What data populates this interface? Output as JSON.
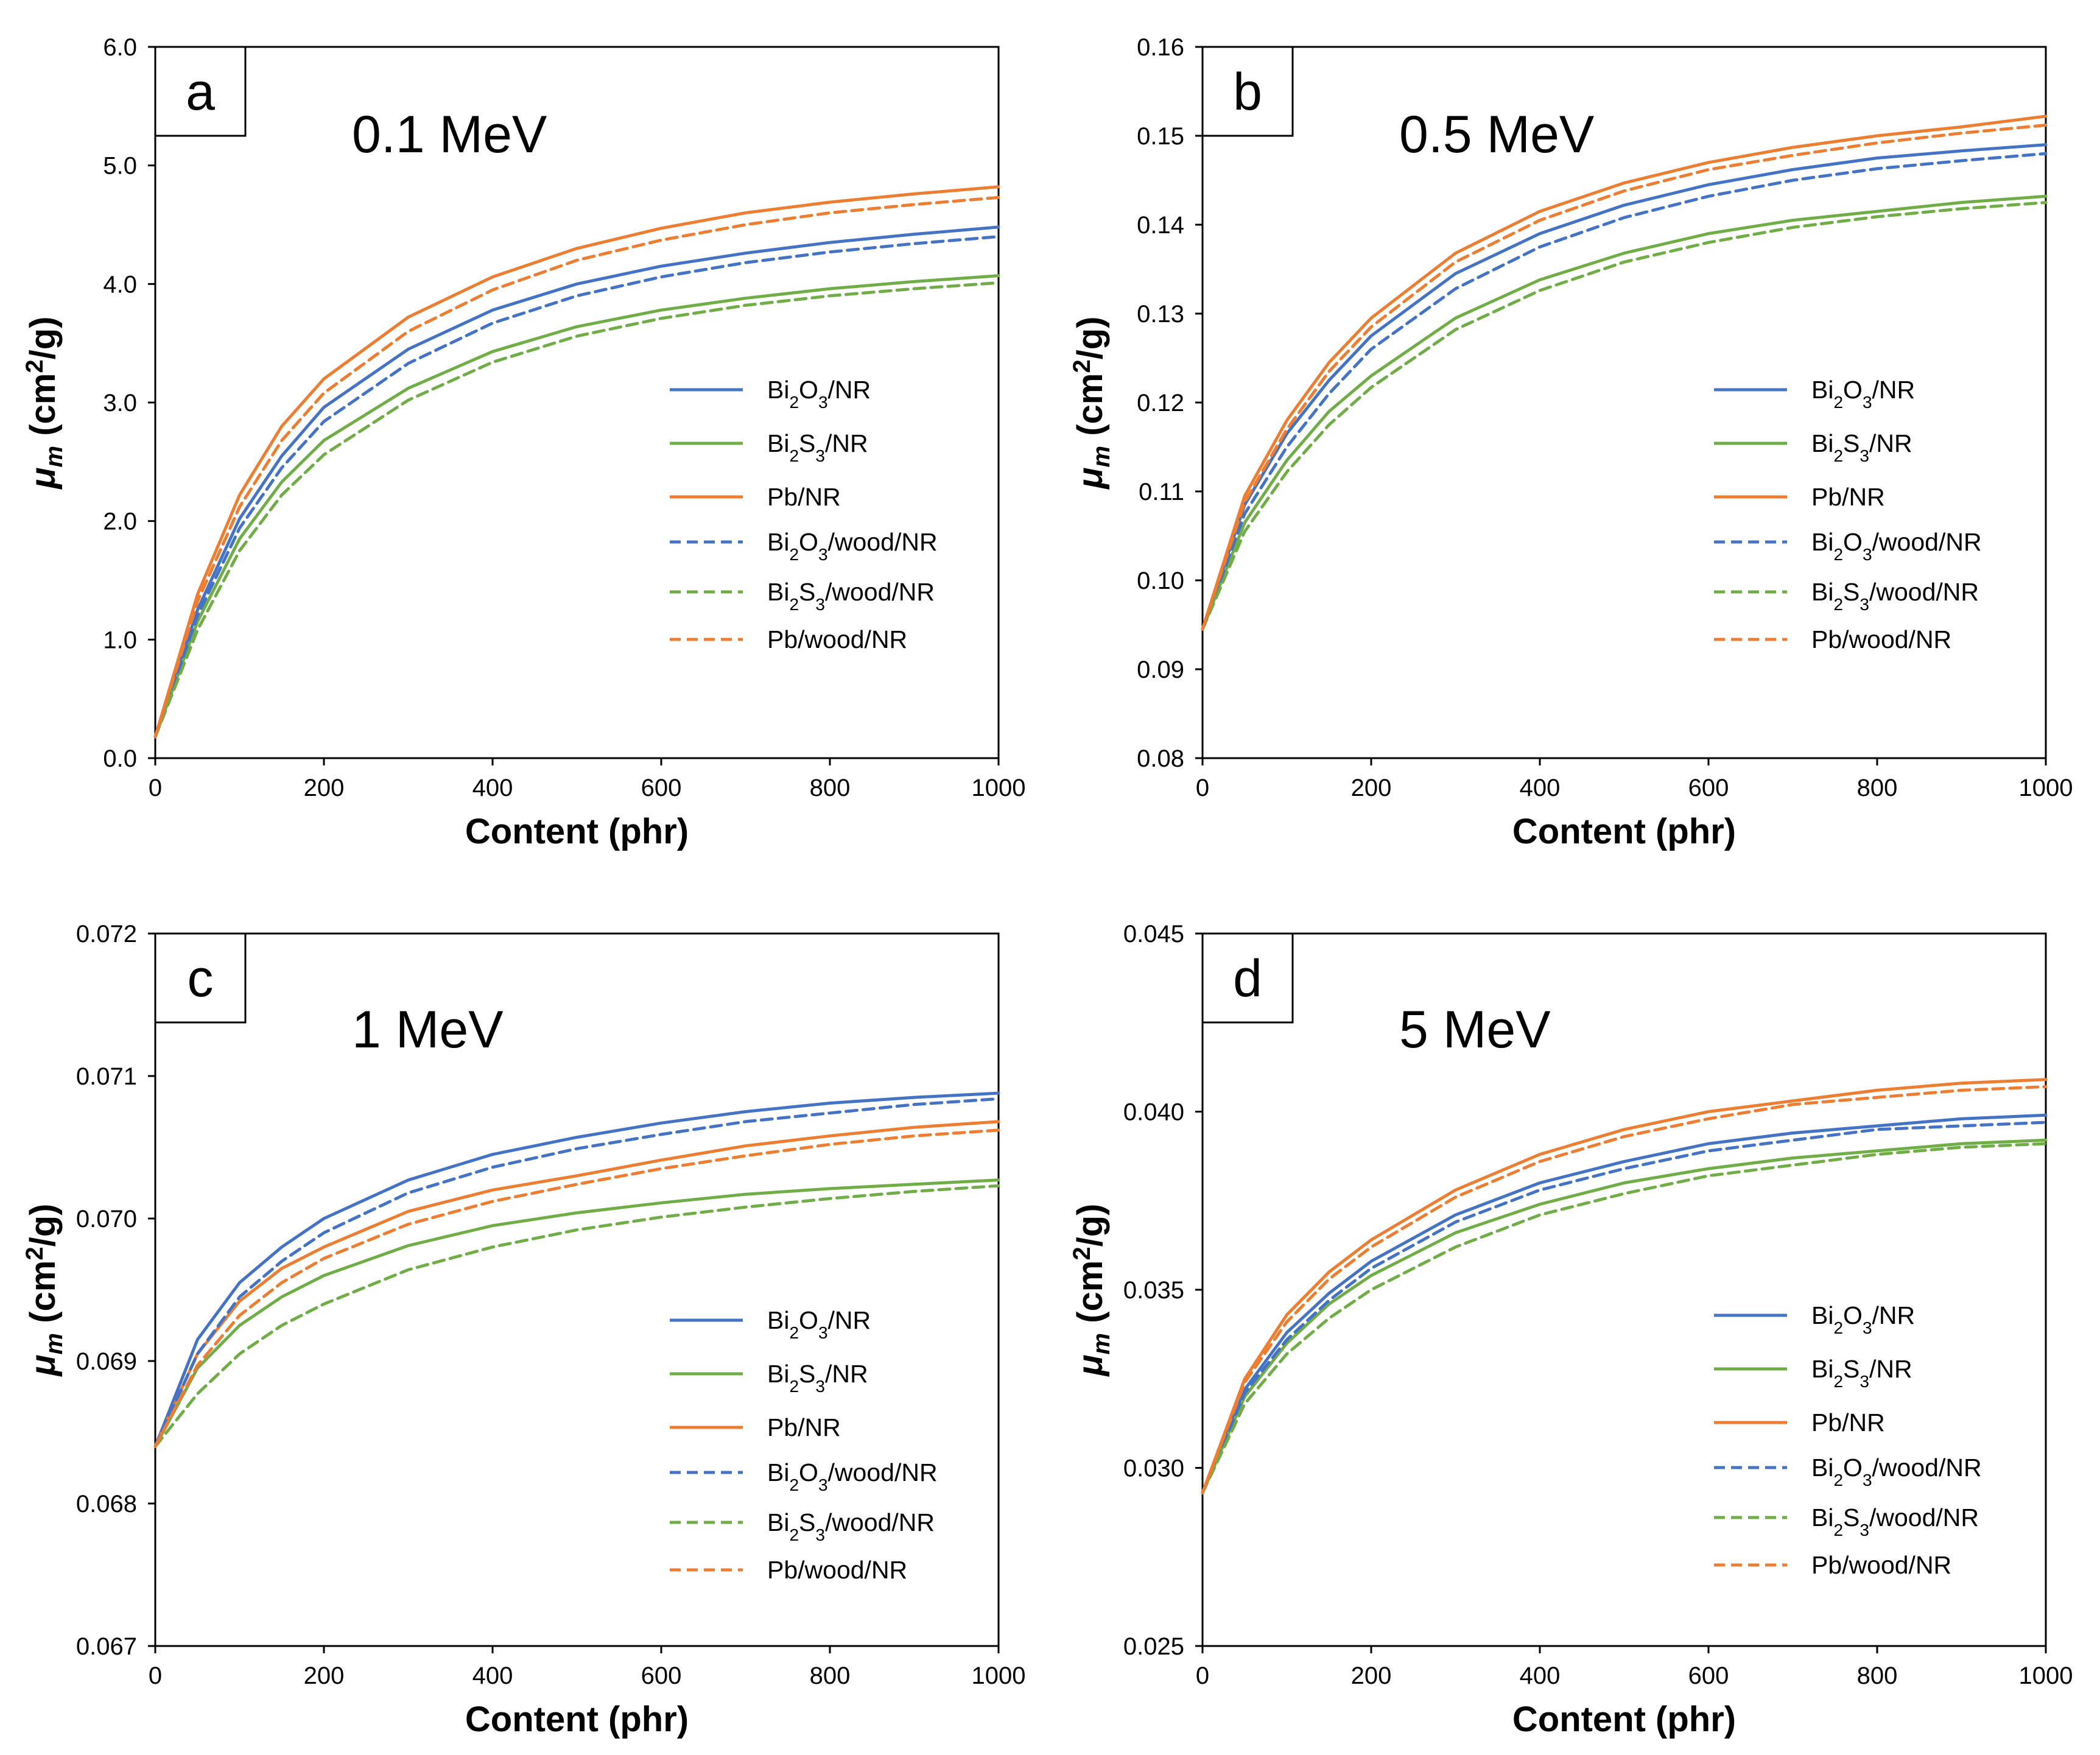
{
  "chart_data": [
    {
      "type": "line",
      "panel": "a",
      "title": "0.1 MeV",
      "xlabel": "Content (phr)",
      "ylabel": "μm (cm2/g)",
      "xlim": [
        0,
        1000
      ],
      "ylim": [
        0.0,
        6.0
      ],
      "xticks": [
        "0",
        "200",
        "400",
        "600",
        "800",
        "1000"
      ],
      "yticks": [
        "0.0",
        "1.0",
        "2.0",
        "3.0",
        "4.0",
        "5.0",
        "6.0"
      ],
      "x": [
        0,
        50,
        100,
        150,
        200,
        300,
        400,
        500,
        600,
        700,
        800,
        900,
        1000
      ],
      "series": [
        {
          "name": "Bi2O3/NR",
          "color": "#4472c4",
          "style": "solid",
          "values": [
            0.18,
            1.25,
            2.02,
            2.55,
            2.96,
            3.45,
            3.78,
            4.0,
            4.15,
            4.26,
            4.35,
            4.42,
            4.48
          ]
        },
        {
          "name": "Bi2S3/NR",
          "color": "#70ad47",
          "style": "solid",
          "values": [
            0.18,
            1.15,
            1.85,
            2.33,
            2.68,
            3.12,
            3.43,
            3.64,
            3.78,
            3.88,
            3.96,
            4.02,
            4.07
          ]
        },
        {
          "name": "Pb/NR",
          "color": "#ed7d31",
          "style": "solid",
          "values": [
            0.18,
            1.38,
            2.22,
            2.8,
            3.2,
            3.72,
            4.06,
            4.3,
            4.47,
            4.6,
            4.69,
            4.76,
            4.82
          ]
        },
        {
          "name": "Bi2O3/wood/NR",
          "color": "#4472c4",
          "style": "dashed",
          "values": [
            0.18,
            1.2,
            1.94,
            2.45,
            2.84,
            3.33,
            3.67,
            3.9,
            4.06,
            4.18,
            4.27,
            4.34,
            4.4
          ]
        },
        {
          "name": "Bi2S3/wood/NR",
          "color": "#70ad47",
          "style": "dashed",
          "values": [
            0.18,
            1.08,
            1.75,
            2.22,
            2.56,
            3.02,
            3.34,
            3.56,
            3.71,
            3.82,
            3.9,
            3.96,
            4.01
          ]
        },
        {
          "name": "Pb/wood/NR",
          "color": "#ed7d31",
          "style": "dashed",
          "values": [
            0.18,
            1.32,
            2.12,
            2.68,
            3.08,
            3.6,
            3.95,
            4.2,
            4.37,
            4.5,
            4.6,
            4.67,
            4.73
          ]
        }
      ]
    },
    {
      "type": "line",
      "panel": "b",
      "title": "0.5 MeV",
      "xlabel": "Content (phr)",
      "ylabel": "μm (cm2/g)",
      "xlim": [
        0,
        1000
      ],
      "ylim": [
        0.08,
        0.16
      ],
      "xticks": [
        "0",
        "200",
        "400",
        "600",
        "800",
        "1000"
      ],
      "yticks": [
        "0.08",
        "0.09",
        "0.10",
        "0.11",
        "0.12",
        "0.13",
        "0.14",
        "0.15",
        "0.16"
      ],
      "x": [
        0,
        50,
        100,
        150,
        200,
        300,
        400,
        500,
        600,
        700,
        800,
        900,
        1000
      ],
      "series": [
        {
          "name": "Bi2O3/NR",
          "color": "#4472c4",
          "style": "solid",
          "values": [
            0.0945,
            0.1085,
            0.1165,
            0.1225,
            0.1275,
            0.1345,
            0.139,
            0.1422,
            0.1445,
            0.1462,
            0.1475,
            0.1483,
            0.149
          ]
        },
        {
          "name": "Bi2S3/NR",
          "color": "#70ad47",
          "style": "solid",
          "values": [
            0.0945,
            0.1065,
            0.1135,
            0.119,
            0.123,
            0.1295,
            0.1338,
            0.1368,
            0.139,
            0.1405,
            0.1415,
            0.1425,
            0.1432
          ]
        },
        {
          "name": "Pb/NR",
          "color": "#ed7d31",
          "style": "solid",
          "values": [
            0.0945,
            0.1095,
            0.118,
            0.1245,
            0.1295,
            0.1368,
            0.1415,
            0.1447,
            0.147,
            0.1487,
            0.15,
            0.151,
            0.1522
          ]
        },
        {
          "name": "Bi2O3/wood/NR",
          "color": "#4472c4",
          "style": "dashed",
          "values": [
            0.0945,
            0.1075,
            0.115,
            0.121,
            0.126,
            0.1328,
            0.1375,
            0.1408,
            0.1432,
            0.145,
            0.1463,
            0.1472,
            0.148
          ]
        },
        {
          "name": "Bi2S3/wood/NR",
          "color": "#70ad47",
          "style": "dashed",
          "values": [
            0.0945,
            0.1055,
            0.1122,
            0.1175,
            0.1217,
            0.1282,
            0.1326,
            0.1358,
            0.138,
            0.1397,
            0.1409,
            0.1418,
            0.1425
          ]
        },
        {
          "name": "Pb/wood/NR",
          "color": "#ed7d31",
          "style": "dashed",
          "values": [
            0.0945,
            0.1088,
            0.117,
            0.1235,
            0.1285,
            0.1358,
            0.1405,
            0.1438,
            0.1462,
            0.1478,
            0.1492,
            0.1503,
            0.1512
          ]
        }
      ]
    },
    {
      "type": "line",
      "panel": "c",
      "title": "1 MeV",
      "xlabel": "Content (phr)",
      "ylabel": "μm (cm2/g)",
      "xlim": [
        0,
        1000
      ],
      "ylim": [
        0.067,
        0.072
      ],
      "xticks": [
        "0",
        "200",
        "400",
        "600",
        "800",
        "1000"
      ],
      "yticks": [
        "0.067",
        "0.068",
        "0.069",
        "0.070",
        "0.071",
        "0.072"
      ],
      "x": [
        0,
        50,
        100,
        150,
        200,
        300,
        400,
        500,
        600,
        700,
        800,
        900,
        1000
      ],
      "series": [
        {
          "name": "Bi2O3/NR",
          "color": "#4472c4",
          "style": "solid",
          "values": [
            0.0684,
            0.06915,
            0.06955,
            0.0698,
            0.07,
            0.07027,
            0.07045,
            0.07057,
            0.07067,
            0.07075,
            0.07081,
            0.07085,
            0.07088
          ]
        },
        {
          "name": "Bi2S3/NR",
          "color": "#70ad47",
          "style": "solid",
          "values": [
            0.0684,
            0.06895,
            0.06925,
            0.06945,
            0.0696,
            0.06981,
            0.06995,
            0.07004,
            0.07011,
            0.07017,
            0.07021,
            0.07024,
            0.07027
          ]
        },
        {
          "name": "Pb/NR",
          "color": "#ed7d31",
          "style": "solid",
          "values": [
            0.0684,
            0.06905,
            0.06942,
            0.06965,
            0.0698,
            0.07005,
            0.0702,
            0.0703,
            0.07041,
            0.07051,
            0.07058,
            0.07064,
            0.07068
          ]
        },
        {
          "name": "Bi2O3/wood/NR",
          "color": "#4472c4",
          "style": "dashed",
          "values": [
            0.0684,
            0.06905,
            0.06945,
            0.0697,
            0.0699,
            0.07018,
            0.07036,
            0.07049,
            0.07059,
            0.07068,
            0.07074,
            0.0708,
            0.07084
          ]
        },
        {
          "name": "Bi2S3/wood/NR",
          "color": "#70ad47",
          "style": "dashed",
          "values": [
            0.0684,
            0.06877,
            0.06905,
            0.06925,
            0.0694,
            0.06964,
            0.0698,
            0.06992,
            0.07001,
            0.07008,
            0.07014,
            0.07019,
            0.07023
          ]
        },
        {
          "name": "Pb/wood/NR",
          "color": "#ed7d31",
          "style": "dashed",
          "values": [
            0.0684,
            0.06897,
            0.06932,
            0.06955,
            0.06972,
            0.06996,
            0.07012,
            0.07024,
            0.07035,
            0.07044,
            0.07052,
            0.07058,
            0.07062
          ]
        }
      ]
    },
    {
      "type": "line",
      "panel": "d",
      "title": "5 MeV",
      "xlabel": "Content (phr)",
      "ylabel": "μm (cm2/g)",
      "xlim": [
        0,
        1000
      ],
      "ylim": [
        0.025,
        0.045
      ],
      "xticks": [
        "0",
        "200",
        "400",
        "600",
        "800",
        "1000"
      ],
      "yticks": [
        "0.025",
        "0.030",
        "0.035",
        "0.040",
        "0.045"
      ],
      "x": [
        0,
        50,
        100,
        150,
        200,
        300,
        400,
        500,
        600,
        700,
        800,
        900,
        1000
      ],
      "series": [
        {
          "name": "Bi2O3/NR",
          "color": "#4472c4",
          "style": "solid",
          "values": [
            0.0293,
            0.0322,
            0.0338,
            0.0349,
            0.0358,
            0.0371,
            0.038,
            0.0386,
            0.0391,
            0.0394,
            0.0396,
            0.0398,
            0.0399
          ]
        },
        {
          "name": "Bi2S3/NR",
          "color": "#70ad47",
          "style": "solid",
          "values": [
            0.0293,
            0.032,
            0.0335,
            0.0346,
            0.0354,
            0.0366,
            0.0374,
            0.038,
            0.0384,
            0.0387,
            0.0389,
            0.0391,
            0.0392
          ]
        },
        {
          "name": "Pb/NR",
          "color": "#ed7d31",
          "style": "solid",
          "values": [
            0.0293,
            0.0325,
            0.0343,
            0.0355,
            0.0364,
            0.0378,
            0.0388,
            0.0395,
            0.04,
            0.0403,
            0.0406,
            0.0408,
            0.0409
          ]
        },
        {
          "name": "Bi2O3/wood/NR",
          "color": "#4472c4",
          "style": "dashed",
          "values": [
            0.0293,
            0.0321,
            0.0336,
            0.0347,
            0.0356,
            0.0369,
            0.0378,
            0.0384,
            0.0389,
            0.0392,
            0.0395,
            0.0396,
            0.0397
          ]
        },
        {
          "name": "Bi2S3/wood/NR",
          "color": "#70ad47",
          "style": "dashed",
          "values": [
            0.0293,
            0.0318,
            0.0332,
            0.0342,
            0.035,
            0.0362,
            0.0371,
            0.0377,
            0.0382,
            0.0385,
            0.0388,
            0.039,
            0.0391
          ]
        },
        {
          "name": "Pb/wood/NR",
          "color": "#ed7d31",
          "style": "dashed",
          "values": [
            0.0293,
            0.0324,
            0.0341,
            0.0353,
            0.0362,
            0.0376,
            0.0386,
            0.0393,
            0.0398,
            0.0402,
            0.0404,
            0.0406,
            0.0407
          ]
        }
      ]
    }
  ]
}
